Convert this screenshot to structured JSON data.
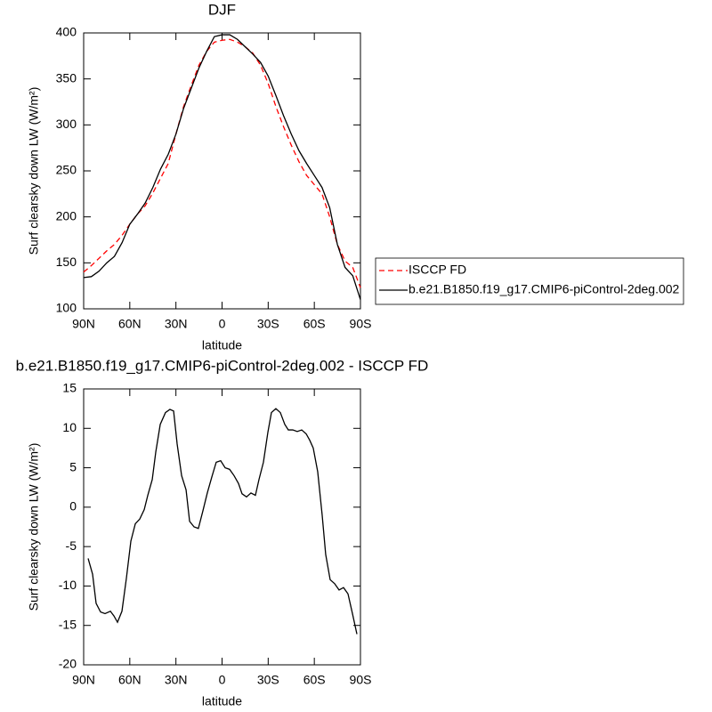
{
  "chart_data": [
    {
      "type": "line",
      "title": "DJF",
      "xlabel": "latitude",
      "ylabel": "Surf clearsky down LW (W/m²)",
      "x": [
        90,
        85,
        80,
        75,
        70,
        65,
        60,
        55,
        50,
        45,
        40,
        35,
        30,
        25,
        20,
        15,
        10,
        5,
        0,
        -5,
        -10,
        -15,
        -20,
        -25,
        -30,
        -35,
        -40,
        -45,
        -50,
        -55,
        -60,
        -65,
        -70,
        -75,
        -80,
        -85,
        -90
      ],
      "series": [
        {
          "name": "ISCCP FD",
          "color": "#ff0000",
          "dash": true,
          "values": [
            140,
            147,
            155,
            163,
            170,
            180,
            192,
            203,
            212,
            226,
            242,
            258,
            290,
            320,
            343,
            365,
            380,
            390,
            392,
            393,
            390,
            385,
            378,
            365,
            345,
            320,
            298,
            278,
            260,
            245,
            235,
            225,
            200,
            170,
            152,
            145,
            123
          ]
        },
        {
          "name": "b.e21.B1850.f19_g17.CMIP6-piControl-2deg.002",
          "color": "#000000",
          "dash": false,
          "values": [
            134,
            135,
            141,
            150,
            157,
            172,
            192,
            203,
            215,
            232,
            252,
            268,
            290,
            318,
            340,
            362,
            380,
            396,
            398,
            398,
            393,
            385,
            377,
            368,
            353,
            332,
            310,
            290,
            272,
            258,
            245,
            232,
            210,
            170,
            145,
            136,
            110
          ]
        }
      ],
      "xlim": [
        90,
        -90
      ],
      "xticks": [
        {
          "value": 90,
          "label": "90N"
        },
        {
          "value": 60,
          "label": "60N"
        },
        {
          "value": 30,
          "label": "30N"
        },
        0,
        {
          "value": -30,
          "label": "30S"
        },
        {
          "value": -60,
          "label": "60S"
        },
        {
          "value": -90,
          "label": "90S"
        }
      ],
      "ylim": [
        100,
        400
      ],
      "yticks": [
        100,
        150,
        200,
        250,
        300,
        350,
        400
      ],
      "legend": "right"
    },
    {
      "type": "line",
      "title": "b.e21.B1850.f19_g17.CMIP6-piControl-2deg.002 - ISCCP FD",
      "xlabel": "latitude",
      "ylabel": "Surf clearsky down LW (W/m²)",
      "x": [
        87.1,
        84.2,
        81.9,
        79.0,
        76.1,
        72.6,
        70.3,
        68.0,
        65.1,
        62.2,
        59.3,
        56.4,
        53.5,
        50.6,
        48.3,
        45.4,
        43.1,
        40.2,
        36.8,
        33.9,
        31.5,
        29.2,
        26.3,
        23.4,
        21.1,
        18.2,
        15.4,
        12.5,
        9.6,
        6.7,
        3.8,
        0.9,
        -2.0,
        -4.9,
        -7.8,
        -10.7,
        -13.0,
        -15.9,
        -18.8,
        -21.7,
        -24.0,
        -26.9,
        -29.8,
        -32.1,
        -35.0,
        -37.9,
        -40.8,
        -43.1,
        -46.0,
        -48.9,
        -51.8,
        -54.7,
        -57.0,
        -59.3,
        -62.2,
        -65.1,
        -67.4,
        -70.3,
        -73.2,
        -76.1,
        -79.0,
        -81.9,
        -84.8,
        -87.7
      ],
      "series": [
        {
          "color": "#000000",
          "dash": false,
          "values": [
            -6.5,
            -8.5,
            -12.2,
            -13.3,
            -13.5,
            -13.2,
            -13.8,
            -14.6,
            -13.2,
            -9,
            -4.3,
            -2.1,
            -1.5,
            -0.3,
            1.5,
            3.5,
            7,
            10.5,
            12,
            12.4,
            12.2,
            8,
            4,
            2.2,
            -1.8,
            -2.5,
            -2.7,
            -0.5,
            1.8,
            3.8,
            5.7,
            5.9,
            5,
            4.8,
            4,
            3,
            1.7,
            1.3,
            1.8,
            1.5,
            3.5,
            5.7,
            9.5,
            12,
            12.5,
            12,
            10.5,
            9.8,
            9.8,
            9.6,
            9.8,
            9.3,
            8.5,
            7.5,
            4.5,
            -1,
            -6,
            -9.2,
            -9.7,
            -10.5,
            -10.2,
            -11,
            -13.5,
            -16.1
          ]
        }
      ],
      "xlim": [
        90,
        -90
      ],
      "xticks": [
        {
          "value": 90,
          "label": "90N"
        },
        {
          "value": 60,
          "label": "60N"
        },
        {
          "value": 30,
          "label": "30N"
        },
        0,
        {
          "value": -30,
          "label": "30S"
        },
        {
          "value": -60,
          "label": "60S"
        },
        {
          "value": -90,
          "label": "90S"
        }
      ],
      "ylim": [
        -20,
        15
      ],
      "yticks": [
        -20,
        -15,
        -10,
        -5,
        0,
        5,
        10,
        15
      ]
    }
  ]
}
